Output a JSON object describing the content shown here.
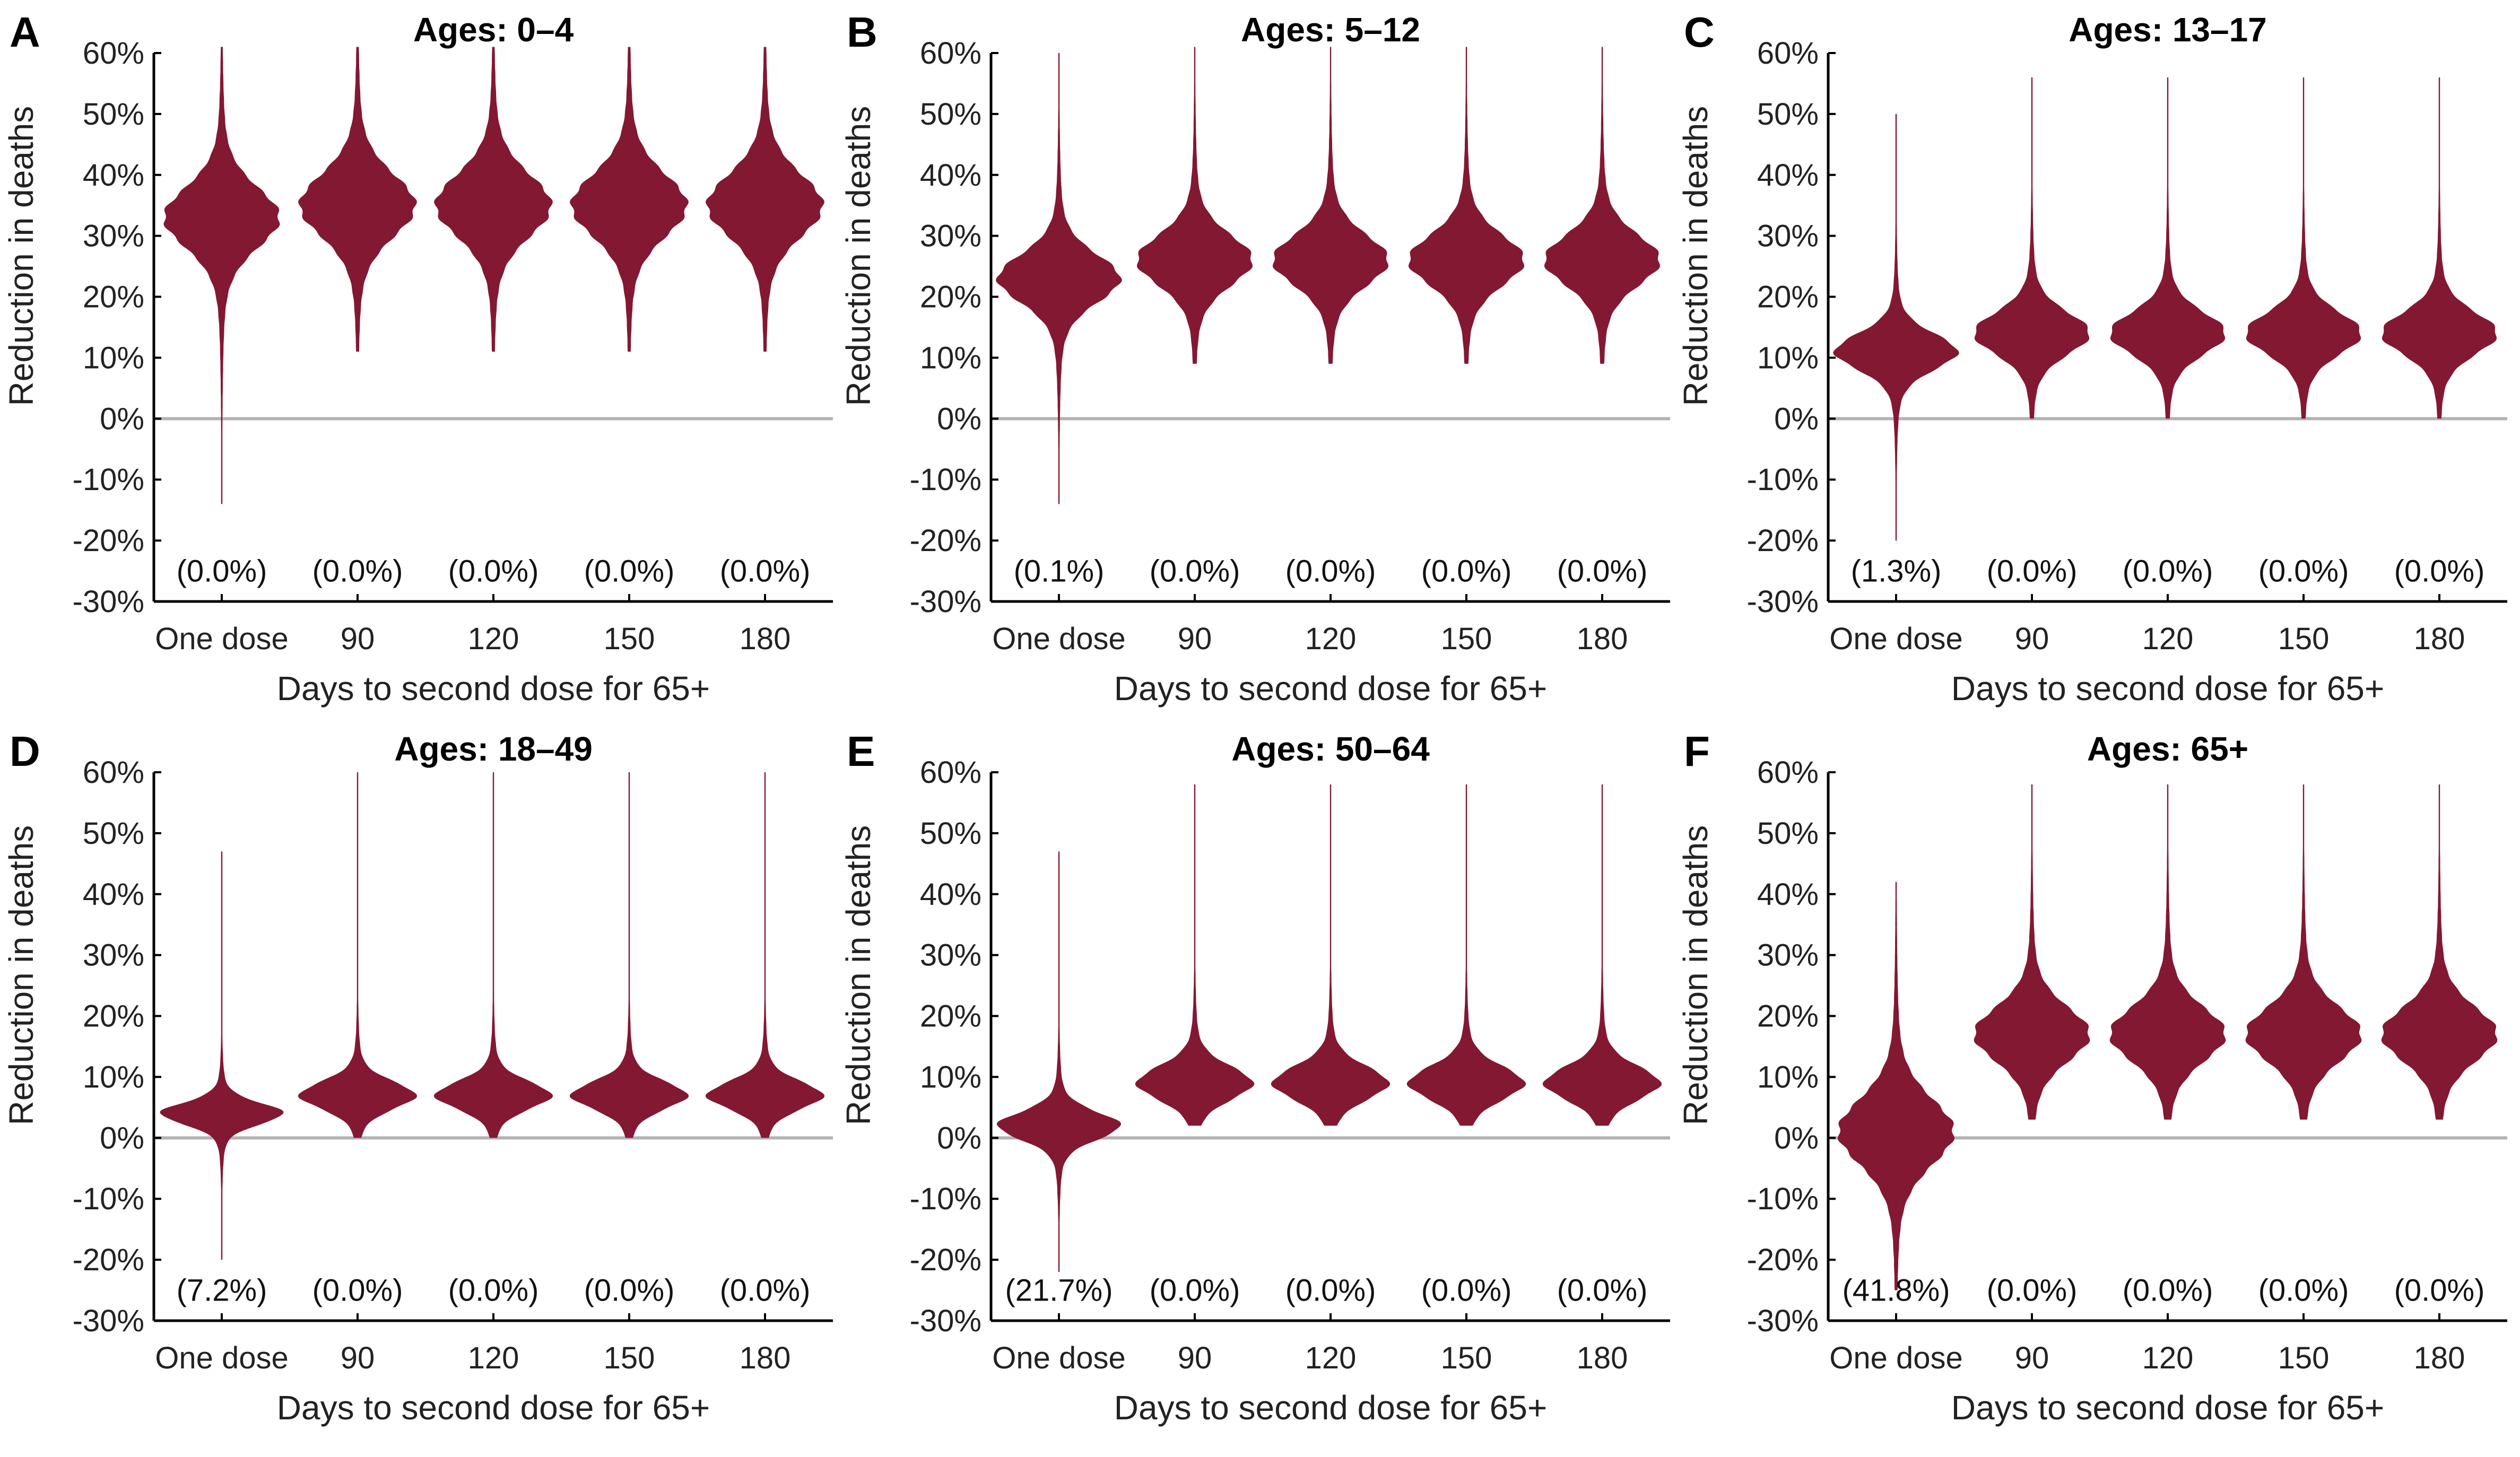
{
  "chart_data": [
    {
      "type": "violin",
      "panel_letter": "A",
      "title": "Ages: 0–4",
      "xlabel": "Days to second dose for 65+",
      "ylabel": "Reduction in deaths",
      "ylim": [
        -30,
        60
      ],
      "yticks": [
        "60%",
        "50%",
        "40%",
        "30%",
        "20%",
        "10%",
        "0%",
        "-10%",
        "-20%",
        "-30%"
      ],
      "categories": [
        "One dose",
        "90",
        "120",
        "150",
        "180"
      ],
      "negative_share_labels": [
        "(0.0%)",
        "(0.0%)",
        "(0.0%)",
        "(0.0%)",
        "(0.0%)"
      ],
      "series": [
        {
          "median": 33,
          "min": -14,
          "max": 61,
          "spread": 5,
          "maxw": 0.85
        },
        {
          "median": 35,
          "min": 11,
          "max": 61,
          "spread": 5.2,
          "maxw": 0.85
        },
        {
          "median": 35,
          "min": 11,
          "max": 61,
          "spread": 5.2,
          "maxw": 0.85
        },
        {
          "median": 35,
          "min": 11,
          "max": 61,
          "spread": 5.2,
          "maxw": 0.85
        },
        {
          "median": 35,
          "min": 11,
          "max": 61,
          "spread": 5.2,
          "maxw": 0.85
        }
      ]
    },
    {
      "type": "violin",
      "panel_letter": "B",
      "title": "Ages: 5–12",
      "xlabel": "Days to second dose for 65+",
      "ylabel": "Reduction in deaths",
      "ylim": [
        -30,
        60
      ],
      "yticks": [
        "60%",
        "50%",
        "40%",
        "30%",
        "20%",
        "10%",
        "0%",
        "-10%",
        "-20%",
        "-30%"
      ],
      "categories": [
        "One dose",
        "90",
        "120",
        "150",
        "180"
      ],
      "negative_share_labels": [
        "(0.1%)",
        "(0.0%)",
        "(0.0%)",
        "(0.0%)",
        "(0.0%)"
      ],
      "series": [
        {
          "median": 23,
          "min": -14,
          "max": 60,
          "spread": 4,
          "maxw": 0.9
        },
        {
          "median": 26,
          "min": 9,
          "max": 61,
          "spread": 4.2,
          "maxw": 0.85
        },
        {
          "median": 26,
          "min": 9,
          "max": 61,
          "spread": 4.2,
          "maxw": 0.85
        },
        {
          "median": 26,
          "min": 9,
          "max": 61,
          "spread": 4.2,
          "maxw": 0.85
        },
        {
          "median": 26,
          "min": 9,
          "max": 61,
          "spread": 4.2,
          "maxw": 0.85
        }
      ]
    },
    {
      "type": "violin",
      "panel_letter": "C",
      "title": "Ages: 13–17",
      "xlabel": "Days to second dose for 65+",
      "ylabel": "Reduction in deaths",
      "ylim": [
        -30,
        60
      ],
      "yticks": [
        "60%",
        "50%",
        "40%",
        "30%",
        "20%",
        "10%",
        "0%",
        "-10%",
        "-20%",
        "-30%"
      ],
      "categories": [
        "One dose",
        "90",
        "120",
        "150",
        "180"
      ],
      "negative_share_labels": [
        "(1.3%)",
        "(0.0%)",
        "(0.0%)",
        "(0.0%)",
        "(0.0%)"
      ],
      "series": [
        {
          "median": 11,
          "min": -20,
          "max": 50,
          "spread": 3,
          "maxw": 0.9
        },
        {
          "median": 14,
          "min": 0,
          "max": 56,
          "spread": 3.5,
          "maxw": 0.85
        },
        {
          "median": 14,
          "min": 0,
          "max": 56,
          "spread": 3.5,
          "maxw": 0.85
        },
        {
          "median": 14,
          "min": 0,
          "max": 56,
          "spread": 3.5,
          "maxw": 0.85
        },
        {
          "median": 14,
          "min": 0,
          "max": 56,
          "spread": 3.5,
          "maxw": 0.85
        }
      ]
    },
    {
      "type": "violin",
      "panel_letter": "D",
      "title": "Ages: 18–49",
      "xlabel": "Days to second dose for 65+",
      "ylabel": "Reduction in deaths",
      "ylim": [
        -30,
        60
      ],
      "yticks": [
        "60%",
        "50%",
        "40%",
        "30%",
        "20%",
        "10%",
        "0%",
        "-10%",
        "-20%",
        "-30%"
      ],
      "categories": [
        "One dose",
        "90",
        "120",
        "150",
        "180"
      ],
      "negative_share_labels": [
        "(7.2%)",
        "(0.0%)",
        "(0.0%)",
        "(0.0%)",
        "(0.0%)"
      ],
      "series": [
        {
          "median": 4,
          "min": -20,
          "max": 47,
          "spread": 1.8,
          "maxw": 0.9
        },
        {
          "median": 7,
          "min": 0,
          "max": 60,
          "spread": 2.3,
          "maxw": 0.85
        },
        {
          "median": 7,
          "min": 0,
          "max": 60,
          "spread": 2.3,
          "maxw": 0.85
        },
        {
          "median": 7,
          "min": 0,
          "max": 60,
          "spread": 2.3,
          "maxw": 0.85
        },
        {
          "median": 7,
          "min": 0,
          "max": 60,
          "spread": 2.3,
          "maxw": 0.85
        }
      ]
    },
    {
      "type": "violin",
      "panel_letter": "E",
      "title": "Ages: 50–64",
      "xlabel": "Days to second dose for 65+",
      "ylabel": "Reduction in deaths",
      "ylim": [
        -30,
        60
      ],
      "yticks": [
        "60%",
        "50%",
        "40%",
        "30%",
        "20%",
        "10%",
        "0%",
        "-10%",
        "-20%",
        "-30%"
      ],
      "categories": [
        "One dose",
        "90",
        "120",
        "150",
        "180"
      ],
      "negative_share_labels": [
        "(21.7%)",
        "(0.0%)",
        "(0.0%)",
        "(0.0%)",
        "(0.0%)"
      ],
      "series": [
        {
          "median": 2,
          "min": -22,
          "max": 47,
          "spread": 2.3,
          "maxw": 0.9
        },
        {
          "median": 9,
          "min": 2,
          "max": 58,
          "spread": 2.8,
          "maxw": 0.85
        },
        {
          "median": 9,
          "min": 2,
          "max": 58,
          "spread": 2.8,
          "maxw": 0.85
        },
        {
          "median": 9,
          "min": 2,
          "max": 58,
          "spread": 2.8,
          "maxw": 0.85
        },
        {
          "median": 9,
          "min": 2,
          "max": 58,
          "spread": 2.8,
          "maxw": 0.85
        }
      ]
    },
    {
      "type": "violin",
      "panel_letter": "F",
      "title": "Ages: 65+",
      "xlabel": "Days to second dose for 65+",
      "ylabel": "Reduction in deaths",
      "ylim": [
        -30,
        60
      ],
      "yticks": [
        "60%",
        "50%",
        "40%",
        "30%",
        "20%",
        "10%",
        "0%",
        "-10%",
        "-20%",
        "-30%"
      ],
      "categories": [
        "One dose",
        "90",
        "120",
        "150",
        "180"
      ],
      "negative_share_labels": [
        "(41.8%)",
        "(0.0%)",
        "(0.0%)",
        "(0.0%)",
        "(0.0%)"
      ],
      "series": [
        {
          "median": 1,
          "min": -25,
          "max": 42,
          "spread": 5.5,
          "maxw": 0.85
        },
        {
          "median": 17,
          "min": 3,
          "max": 58,
          "spread": 4.5,
          "maxw": 0.85
        },
        {
          "median": 17,
          "min": 3,
          "max": 58,
          "spread": 4.5,
          "maxw": 0.85
        },
        {
          "median": 17,
          "min": 3,
          "max": 58,
          "spread": 4.5,
          "maxw": 0.85
        },
        {
          "median": 17,
          "min": 3,
          "max": 58,
          "spread": 4.5,
          "maxw": 0.85
        }
      ]
    }
  ],
  "colors": {
    "violin": "#831832",
    "zero_line": "#b3b3b3",
    "axis": "#000000"
  }
}
